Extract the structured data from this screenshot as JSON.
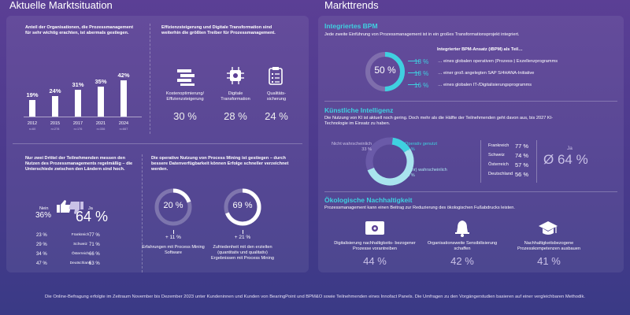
{
  "left": {
    "title": "Aktuelle Marktsituation",
    "bpm": {
      "text": "Anteil der Organisationen, die Prozessmanagement für sehr wichtig erachten, ist abermals gestiegen.",
      "chart_data": {
        "type": "bar",
        "categories": [
          "2012",
          "2015",
          "2017",
          "2021",
          "2024"
        ],
        "values": [
          19,
          24,
          31,
          35,
          42
        ],
        "labels": [
          "19%",
          "24%",
          "31%",
          "35%",
          "42%"
        ],
        "n": [
          "n=60",
          "n=278",
          "n=176",
          "n=336",
          "n=667"
        ]
      }
    },
    "drivers": {
      "text": "Effizienzsteigerung und Digitale Transformation sind weiterhin die größten Treiber für Prozessmanagement.",
      "items": [
        {
          "label": "Kostenoptimierung/ Effizienzsteigerung",
          "value": "30 %",
          "icon": "stack-icon"
        },
        {
          "label": "Digitale Transformation",
          "value": "28 %",
          "icon": "chip-icon"
        },
        {
          "label": "Qualitäts- sicherung",
          "value": "24 %",
          "icon": "checklist-icon"
        }
      ]
    },
    "measure": {
      "text": "Nur zwei Drittel der Teilnehmenden messen den Nutzen des Prozessmanagements regelmäßig – die Unterschiede zwischen den Ländern sind hoch.",
      "nein_label": "Nein",
      "nein_value": "36%",
      "ja_label": "Ja",
      "ja_value": "64 %",
      "rows": [
        {
          "no": "23 %",
          "country": "Frankreich",
          "yes": "77 %"
        },
        {
          "no": "29 %",
          "country": "Schweiz",
          "yes": "71 %"
        },
        {
          "no": "34 %",
          "country": "Österreich",
          "yes": "66 %"
        },
        {
          "no": "47 %",
          "country": "Deutschland",
          "yes": "53 %"
        }
      ]
    },
    "mining": {
      "text": "Die operative Nutzung von Process Mining ist gestiegen – durch bessere Datenverfügbarkeit können Erfolge schneller verzeichnet werden.",
      "donuts": [
        {
          "value": "20 %",
          "fraction": 0.2,
          "delta": "+ 11 %",
          "label": "Erfahrungen mit Process Mining Software"
        },
        {
          "value": "69 %",
          "fraction": 0.69,
          "delta": "+ 21 %",
          "label": "Zufriedenheit mit den erzielten (quantitativ und qualitativ) Ergebnissen mit Process Mining"
        }
      ]
    }
  },
  "right": {
    "title": "Markttrends",
    "ibpm": {
      "heading": "Integriertes BPM",
      "text": "Jede zweite Einführung von Prozessmanagement ist in ein großes Transformationsprojekt integriert.",
      "donut_value": "50 %",
      "donut_fraction": 0.5,
      "sub": "Integrierter BPM-Ansatz (iBPM) als Teil…",
      "rows": [
        {
          "value": "18 %",
          "text": "… eines globalen operativen (Prozess-) Exzellenzprogramms"
        },
        {
          "value": "18 %",
          "text": "… einer groß angelegten SAP S/4HANA-Initiative"
        },
        {
          "value": "16 %",
          "text": "… eines globalen IT-/Digitalisierungsprogramms"
        }
      ]
    },
    "ki": {
      "heading": "Künstliche Intelligenz",
      "text": "Die Nutzung von KI ist aktuell noch gering. Doch mehr als die Hälfte der Teilnehmenden geht davon aus, bis 2027 KI-Technologie im Einsatz zu haben.",
      "segments": [
        {
          "label": "Nicht wahrscheinlich",
          "value": "33 %",
          "fraction": 0.33
        },
        {
          "label": "Operativ genutzt",
          "value": "16 %",
          "fraction": 0.16
        },
        {
          "label": "(Sehr) wahrscheinlich",
          "value": "53 %",
          "fraction": 0.53
        }
      ],
      "countries": [
        {
          "country": "Frankreich",
          "value": "77 %"
        },
        {
          "country": "Schweiz",
          "value": "74 %"
        },
        {
          "country": "Österreich",
          "value": "57 %"
        },
        {
          "country": "Deutschland",
          "value": "56 %"
        }
      ],
      "ja_label": "Ja",
      "avg": "Ø 64 %"
    },
    "eco": {
      "heading": "Ökologische Nachhaltigkeit",
      "text": "Prozessmanagement kann einen Beitrag zur Reduzierung des ökologischen Fußabdrucks leisten.",
      "items": [
        {
          "label": "Digitalisierung nachhaltigkeits- bezogener Prozesse vorantreiben",
          "value": "44 %",
          "icon": "gear-screen-icon"
        },
        {
          "label": "Organisationsweite Sensibilisierung schaffen",
          "value": "42 %",
          "icon": "bell-icon"
        },
        {
          "label": "Nachhaltigkeitsbezogene Prozesskompetenzen ausbauen",
          "value": "41 %",
          "icon": "graduation-cap-icon"
        }
      ]
    }
  },
  "footer": "Die Online-Befragung erfolgte im Zeitraum November bis Dezember 2023 unter Kundeninnen und Kunden von BearingPoint und BPM&O sowie Teilnehmenden eines Innofact Panels. Die Umfragen zu den Vorgängerstudien basieren auf einer vergleichbaren Methodik."
}
